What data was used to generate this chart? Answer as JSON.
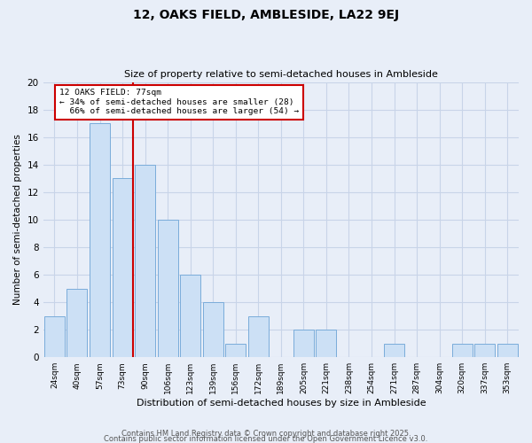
{
  "title": "12, OAKS FIELD, AMBLESIDE, LA22 9EJ",
  "subtitle": "Size of property relative to semi-detached houses in Ambleside",
  "xlabel": "Distribution of semi-detached houses by size in Ambleside",
  "ylabel": "Number of semi-detached properties",
  "bins": [
    "24sqm",
    "40sqm",
    "57sqm",
    "73sqm",
    "90sqm",
    "106sqm",
    "123sqm",
    "139sqm",
    "156sqm",
    "172sqm",
    "189sqm",
    "205sqm",
    "221sqm",
    "238sqm",
    "254sqm",
    "271sqm",
    "287sqm",
    "304sqm",
    "320sqm",
    "337sqm",
    "353sqm"
  ],
  "values": [
    3,
    5,
    17,
    13,
    14,
    10,
    6,
    4,
    1,
    3,
    0,
    2,
    2,
    0,
    0,
    1,
    0,
    0,
    1,
    1,
    1
  ],
  "bar_color": "#cce0f5",
  "bar_edge_color": "#7aacda",
  "marker_bin_index": 3,
  "marker_line_color": "#cc0000",
  "annotation_line1": "12 OAKS FIELD: 77sqm",
  "annotation_line2": "← 34% of semi-detached houses are smaller (28)",
  "annotation_line3": "  66% of semi-detached houses are larger (54) →",
  "annotation_box_color": "#ffffff",
  "annotation_box_edge": "#cc0000",
  "ylim": [
    0,
    20
  ],
  "yticks": [
    0,
    2,
    4,
    6,
    8,
    10,
    12,
    14,
    16,
    18,
    20
  ],
  "grid_color": "#c8d4e8",
  "background_color": "#e8eef8",
  "footer1": "Contains HM Land Registry data © Crown copyright and database right 2025.",
  "footer2": "Contains public sector information licensed under the Open Government Licence v3.0."
}
